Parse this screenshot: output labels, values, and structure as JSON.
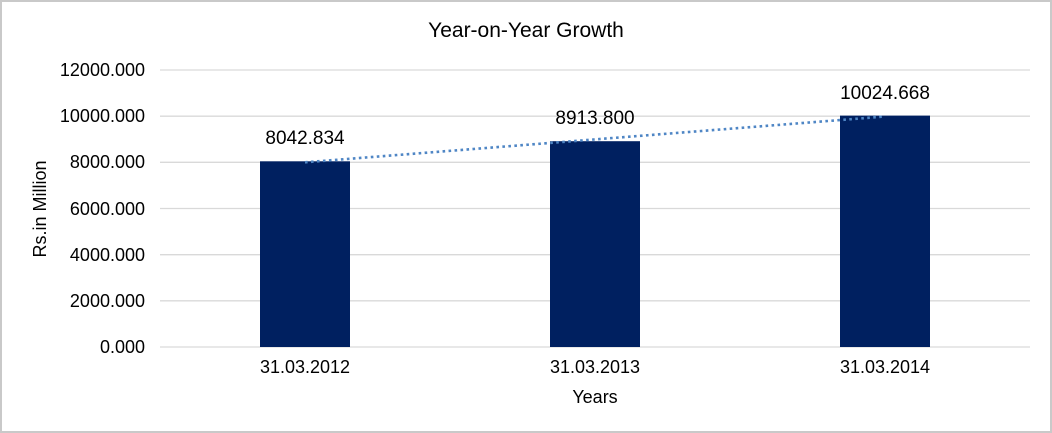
{
  "chart_data": {
    "type": "bar",
    "title": "Year-on-Year Growth",
    "xlabel": "Years",
    "ylabel": "Rs.in Million",
    "categories": [
      "31.03.2012",
      "31.03.2013",
      "31.03.2014"
    ],
    "values": [
      8042.834,
      8913.8,
      10024.668
    ],
    "data_labels": [
      "8042.834",
      "8913.800",
      "10024.668"
    ],
    "ylim": [
      0,
      12000
    ],
    "yticks": [
      0,
      2000,
      4000,
      6000,
      8000,
      10000,
      12000
    ],
    "ytick_labels": [
      "0.000",
      "2000.000",
      "4000.000",
      "6000.000",
      "8000.000",
      "10000.000",
      "12000.000"
    ],
    "grid": true,
    "legend_position": "none",
    "trendline": {
      "type": "linear",
      "style": "dotted"
    },
    "colors": {
      "bar": "#002060",
      "trendline": "#4f86c5",
      "gridline": "#d9d9d9",
      "text": "#000000",
      "frame_border": "#c9c9c9",
      "background": "#ffffff"
    }
  }
}
